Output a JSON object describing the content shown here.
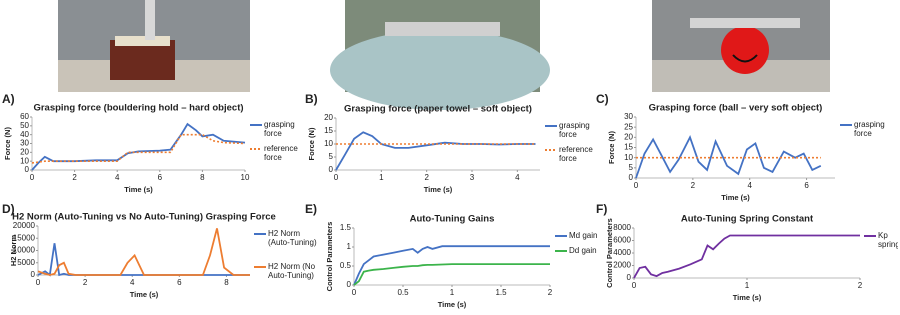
{
  "chart_data": [
    {
      "type": "line",
      "panel": "A)",
      "title": "Grasping force (bouldering hold – hard object)",
      "xlabel": "Time (s)",
      "ylabel": "Force (N)",
      "x": [
        0,
        0.3,
        0.6,
        1,
        2,
        3,
        4,
        4.5,
        5,
        6,
        6.5,
        7,
        7.3,
        7.7,
        8,
        8.5,
        9,
        10
      ],
      "series": [
        {
          "name": "grasping force",
          "color": "#4472c4",
          "values": [
            0,
            8,
            15,
            10,
            10,
            11,
            11,
            19,
            21,
            22,
            23,
            40,
            52,
            45,
            38,
            40,
            33,
            31
          ]
        },
        {
          "name": "reference force",
          "color": "#ed7d31",
          "dash": true,
          "values": [
            8,
            9,
            10,
            10,
            10,
            10,
            10,
            20,
            20,
            20,
            20,
            40,
            40,
            40,
            40,
            33,
            31,
            30
          ]
        }
      ],
      "xlim": [
        0,
        10
      ],
      "xticks": [
        0,
        2,
        4,
        6,
        8,
        10
      ],
      "ylim": [
        0,
        60
      ],
      "yticks": [
        0,
        10,
        20,
        30,
        40,
        50,
        60
      ]
    },
    {
      "type": "line",
      "panel": "B)",
      "title": "Grasping force (paper towel – soft object)",
      "xlabel": "Time (s)",
      "ylabel": "Force (N)",
      "x": [
        0,
        0.2,
        0.4,
        0.6,
        0.8,
        1,
        1.3,
        1.6,
        2,
        2.4,
        2.8,
        3.2,
        3.6,
        4,
        4.4
      ],
      "series": [
        {
          "name": "grasping force",
          "color": "#4472c4",
          "values": [
            0,
            6,
            12,
            14.5,
            13,
            10,
            8.5,
            8.5,
            9.5,
            10.5,
            10,
            10,
            9.8,
            10,
            10
          ]
        },
        {
          "name": "reference force",
          "color": "#ed7d31",
          "dash": true,
          "values": [
            10,
            10,
            10,
            10,
            10,
            10,
            10,
            10,
            10,
            10,
            10,
            10,
            10,
            10,
            10
          ]
        }
      ],
      "xlim": [
        0,
        4.5
      ],
      "xticks": [
        0,
        1,
        2,
        3,
        4
      ],
      "ylim": [
        0,
        20
      ],
      "yticks": [
        0,
        5,
        10,
        15,
        20
      ]
    },
    {
      "type": "line",
      "panel": "C)",
      "title": "Grasping force (ball – very soft object)",
      "xlabel": "Time (s)",
      "ylabel": "Force (N)",
      "x": [
        0,
        0.3,
        0.6,
        0.9,
        1.2,
        1.5,
        1.9,
        2.2,
        2.5,
        2.8,
        3.2,
        3.6,
        3.9,
        4.2,
        4.5,
        4.8,
        5.2,
        5.6,
        5.9,
        6.2,
        6.5
      ],
      "series": [
        {
          "name": "grasping force",
          "color": "#4472c4",
          "values": [
            0,
            12,
            19,
            11,
            3,
            9,
            20,
            8,
            4,
            18,
            6,
            2,
            14,
            17,
            5,
            3,
            13,
            10,
            12,
            4,
            6
          ]
        },
        {
          "color": "#ed7d31",
          "dash": true,
          "values": [
            10,
            10,
            10,
            10,
            10,
            10,
            10,
            10,
            10,
            10,
            10,
            10,
            10,
            10,
            10,
            10,
            10,
            10,
            10,
            10,
            10
          ]
        }
      ],
      "xlim": [
        0,
        7
      ],
      "xticks": [
        0,
        2,
        4,
        6
      ],
      "ylim": [
        0,
        30
      ],
      "yticks": [
        0,
        5,
        10,
        15,
        20,
        25,
        30
      ]
    },
    {
      "type": "line",
      "panel": "D)",
      "title": "H2 Norm (Auto-Tuning vs No Auto-Tuning) Grasping Force",
      "xlabel": "Time (s)",
      "ylabel": "H2 Norm",
      "x": [
        0,
        0.3,
        0.5,
        0.7,
        0.9,
        1.1,
        1.3,
        1.6,
        2,
        3.5,
        3.8,
        4.1,
        4.5,
        7,
        7.3,
        7.6,
        7.9,
        8.3,
        9
      ],
      "series": [
        {
          "name": "H2 Norm (Auto-Tuning)",
          "color": "#4472c4",
          "values": [
            0,
            1500,
            0,
            13000,
            0,
            500,
            0,
            0,
            0,
            0,
            0,
            0,
            0,
            0,
            0,
            0,
            0,
            0,
            0
          ]
        },
        {
          "name": "H2 Norm (No Auto-Tuning)",
          "color": "#ed7d31",
          "values": [
            1500,
            500,
            0,
            500,
            4000,
            5000,
            500,
            0,
            0,
            0,
            5000,
            8000,
            0,
            0,
            8000,
            19000,
            3000,
            0,
            0
          ]
        }
      ],
      "xlim": [
        0,
        9
      ],
      "xticks": [
        0,
        2,
        4,
        6,
        8
      ],
      "ylim": [
        0,
        20000
      ],
      "yticks": [
        0,
        5000,
        10000,
        15000,
        20000
      ]
    },
    {
      "type": "line",
      "panel": "E)",
      "title": "Auto-Tuning Gains",
      "xlabel": "Time (s)",
      "ylabel": "Control Parameters",
      "x": [
        0,
        0.05,
        0.1,
        0.15,
        0.2,
        0.3,
        0.4,
        0.5,
        0.6,
        0.65,
        0.7,
        0.75,
        0.8,
        0.9,
        1,
        1.5,
        2
      ],
      "series": [
        {
          "name": "Md gain",
          "color": "#4472c4",
          "values": [
            0,
            0.3,
            0.55,
            0.65,
            0.75,
            0.8,
            0.85,
            0.9,
            0.95,
            0.85,
            0.95,
            1,
            0.95,
            1.02,
            1.02,
            1.02,
            1.02
          ]
        },
        {
          "name": "Dd gain",
          "color": "#3cb44b",
          "values": [
            0,
            0.1,
            0.35,
            0.38,
            0.4,
            0.42,
            0.45,
            0.48,
            0.5,
            0.5,
            0.52,
            0.53,
            0.53,
            0.54,
            0.55,
            0.55,
            0.55
          ]
        }
      ],
      "xlim": [
        0,
        2
      ],
      "xticks": [
        0,
        0.5,
        1,
        1.5,
        2
      ],
      "ylim": [
        0,
        1.5
      ],
      "yticks": [
        0,
        0.5,
        1,
        1.5
      ]
    },
    {
      "type": "line",
      "panel": "F)",
      "title": "Auto-Tuning Spring Constant",
      "xlabel": "Time (s)",
      "ylabel": "Control Parameters",
      "x": [
        0,
        0.05,
        0.1,
        0.15,
        0.2,
        0.25,
        0.3,
        0.4,
        0.5,
        0.6,
        0.65,
        0.7,
        0.75,
        0.8,
        0.85,
        0.9,
        1,
        1.5,
        2
      ],
      "series": [
        {
          "name": "Kp spring",
          "color": "#7030a0",
          "values": [
            0,
            1600,
            1800,
            600,
            300,
            800,
            1000,
            1500,
            2200,
            3000,
            5200,
            4600,
            5500,
            6300,
            6800,
            6800,
            6800,
            6800,
            6800
          ]
        }
      ],
      "xlim": [
        0,
        2
      ],
      "xticks": [
        0,
        1,
        2
      ],
      "ylim": [
        0,
        8000
      ],
      "yticks": [
        0,
        2000,
        4000,
        6000,
        8000
      ]
    }
  ]
}
